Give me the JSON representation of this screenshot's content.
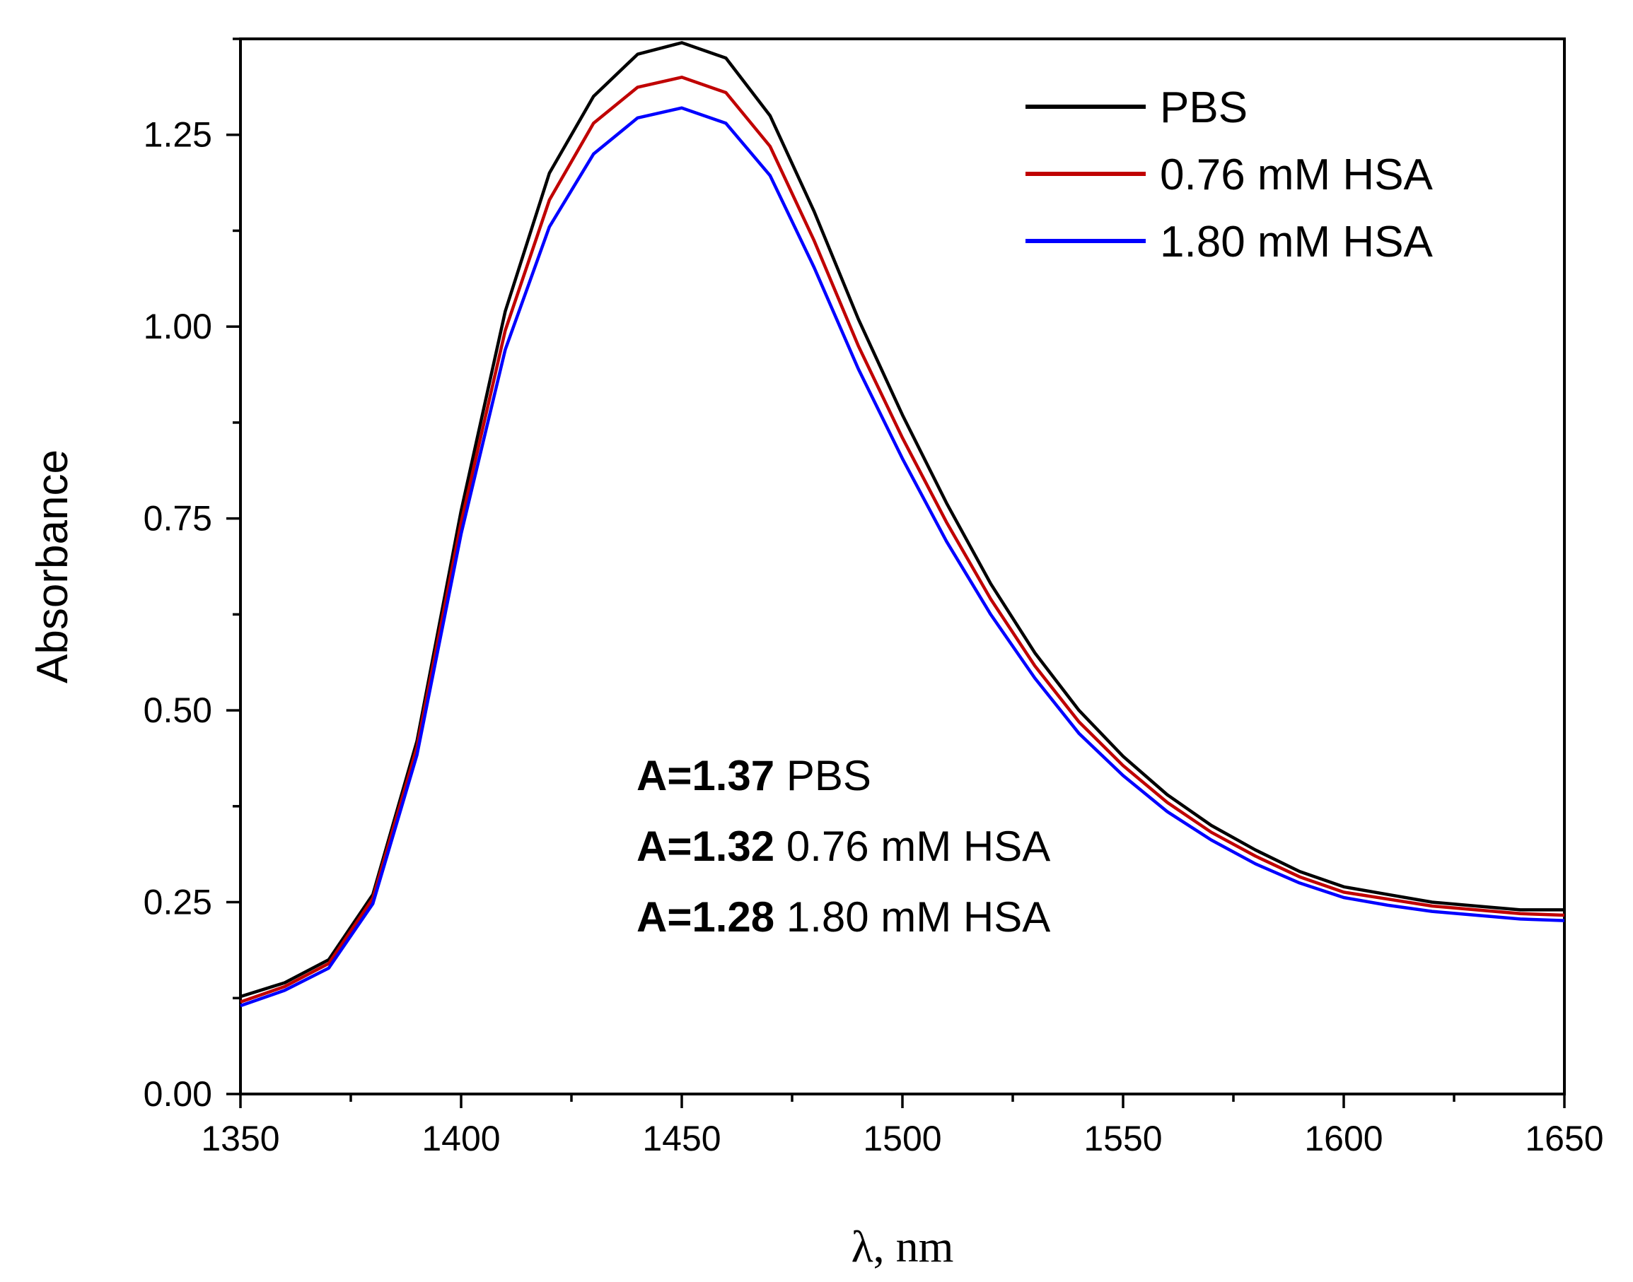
{
  "chart_data": {
    "type": "line",
    "title": "",
    "xlabel": "λ, nm",
    "ylabel": "Absorbance",
    "xlim": [
      1350,
      1650
    ],
    "ylim": [
      0,
      1.375
    ],
    "x_ticks": [
      1350,
      1400,
      1450,
      1500,
      1550,
      1600,
      1650
    ],
    "x_tick_labels": [
      "1350",
      "1400",
      "1450",
      "1500",
      "1550",
      "1600",
      "1650"
    ],
    "x_minor_step": 25,
    "y_ticks": [
      0,
      0.25,
      0.5,
      0.75,
      1.0,
      1.25
    ],
    "y_tick_labels": [
      "0.00",
      "0.25",
      "0.50",
      "0.75",
      "1.00",
      "1.25"
    ],
    "y_minor_step": 0.125,
    "grid": false,
    "legend_position": "top-right",
    "x": [
      1350,
      1360,
      1370,
      1380,
      1390,
      1400,
      1410,
      1420,
      1430,
      1440,
      1450,
      1460,
      1470,
      1480,
      1490,
      1500,
      1510,
      1520,
      1530,
      1540,
      1550,
      1560,
      1570,
      1580,
      1590,
      1600,
      1610,
      1620,
      1630,
      1640,
      1650
    ],
    "series": [
      {
        "name": "PBS",
        "color": "#000000",
        "values": [
          0.127,
          0.145,
          0.175,
          0.26,
          0.46,
          0.76,
          1.02,
          1.2,
          1.3,
          1.355,
          1.37,
          1.35,
          1.275,
          1.15,
          1.01,
          0.885,
          0.77,
          0.665,
          0.575,
          0.5,
          0.44,
          0.39,
          0.35,
          0.318,
          0.29,
          0.27,
          0.26,
          0.25,
          0.245,
          0.24,
          0.24
        ]
      },
      {
        "name": "0.76 mM HSA",
        "color": "#c00000",
        "values": [
          0.12,
          0.14,
          0.17,
          0.255,
          0.452,
          0.745,
          0.995,
          1.165,
          1.265,
          1.312,
          1.325,
          1.305,
          1.235,
          1.112,
          0.975,
          0.855,
          0.745,
          0.645,
          0.558,
          0.485,
          0.428,
          0.38,
          0.341,
          0.31,
          0.283,
          0.263,
          0.254,
          0.245,
          0.24,
          0.235,
          0.233
        ]
      },
      {
        "name": "1.80 mM HSA",
        "color": "#0000ff",
        "values": [
          0.115,
          0.135,
          0.164,
          0.248,
          0.442,
          0.73,
          0.97,
          1.13,
          1.225,
          1.272,
          1.285,
          1.265,
          1.197,
          1.077,
          0.945,
          0.828,
          0.72,
          0.625,
          0.542,
          0.47,
          0.415,
          0.368,
          0.331,
          0.3,
          0.275,
          0.256,
          0.246,
          0.238,
          0.233,
          0.228,
          0.226
        ]
      }
    ],
    "annotations": [
      {
        "bold": "A=1.37",
        "text": "PBS"
      },
      {
        "bold": "A=1.32",
        "text": "0.76 mM HSA"
      },
      {
        "bold": "A=1.28",
        "text": "1.80 mM HSA"
      }
    ]
  }
}
